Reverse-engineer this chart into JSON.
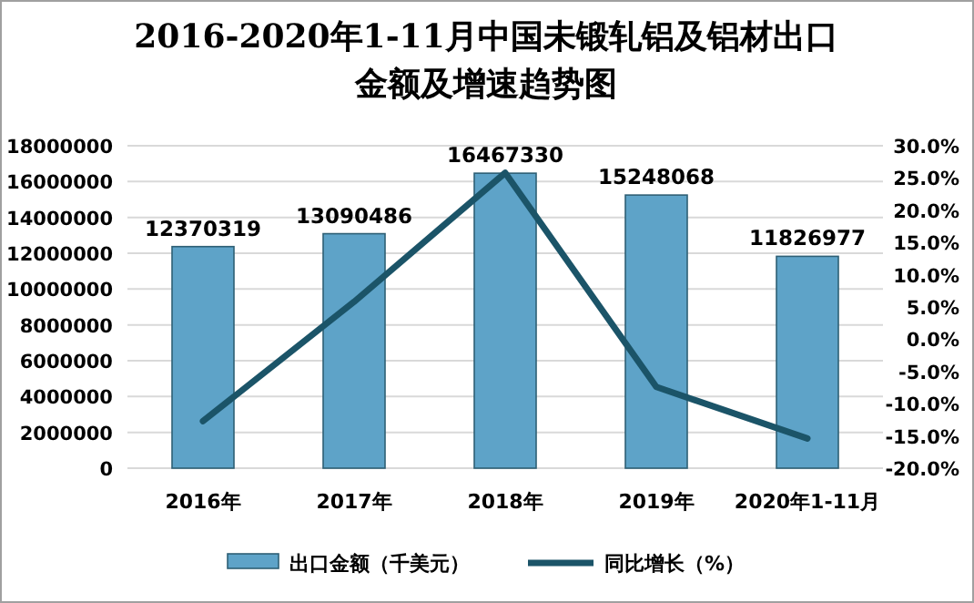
{
  "chart_data": {
    "type": "bar",
    "title": "2016-2020年1-11月中国未锻轧铝及铝材出口金额及增速趋势图",
    "categories": [
      "2016年",
      "2017年",
      "2018年",
      "2019年",
      "2020年1-11月"
    ],
    "series": [
      {
        "name": "出口金额（千美元）",
        "color": "#5ea3c8",
        "values": [
          12370319,
          13090486,
          16467330,
          15248068,
          11826977
        ],
        "value_labels": [
          "12370319",
          "13090486",
          "16467330",
          "15248068",
          "11826977"
        ]
      },
      {
        "name": "同比增长（%）",
        "type": "line",
        "axis": "y2",
        "color": "#1b5468",
        "values": [
          -12.7,
          5.8,
          25.8,
          -7.4,
          -15.4
        ]
      }
    ],
    "ylim": [
      0,
      18000000
    ],
    "yticks": [
      0,
      2000000,
      4000000,
      6000000,
      8000000,
      10000000,
      12000000,
      14000000,
      16000000,
      18000000
    ],
    "y2lim": [
      -20,
      30
    ],
    "y2ticks": [
      {
        "value": -20,
        "label": "-20.0%"
      },
      {
        "value": -15,
        "label": "-15.0%"
      },
      {
        "value": -10,
        "label": "-10.0%"
      },
      {
        "value": -5,
        "label": "-5.0%"
      },
      {
        "value": 0,
        "label": "0.0%"
      },
      {
        "value": 5,
        "label": "5.0%"
      },
      {
        "value": 10,
        "label": "10.0%"
      },
      {
        "value": 15,
        "label": "15.0%"
      },
      {
        "value": 20,
        "label": "20.0%"
      },
      {
        "value": 25,
        "label": "25.0%"
      },
      {
        "value": 30,
        "label": "30.0%"
      }
    ],
    "grid": "y",
    "legend": "bottom"
  }
}
